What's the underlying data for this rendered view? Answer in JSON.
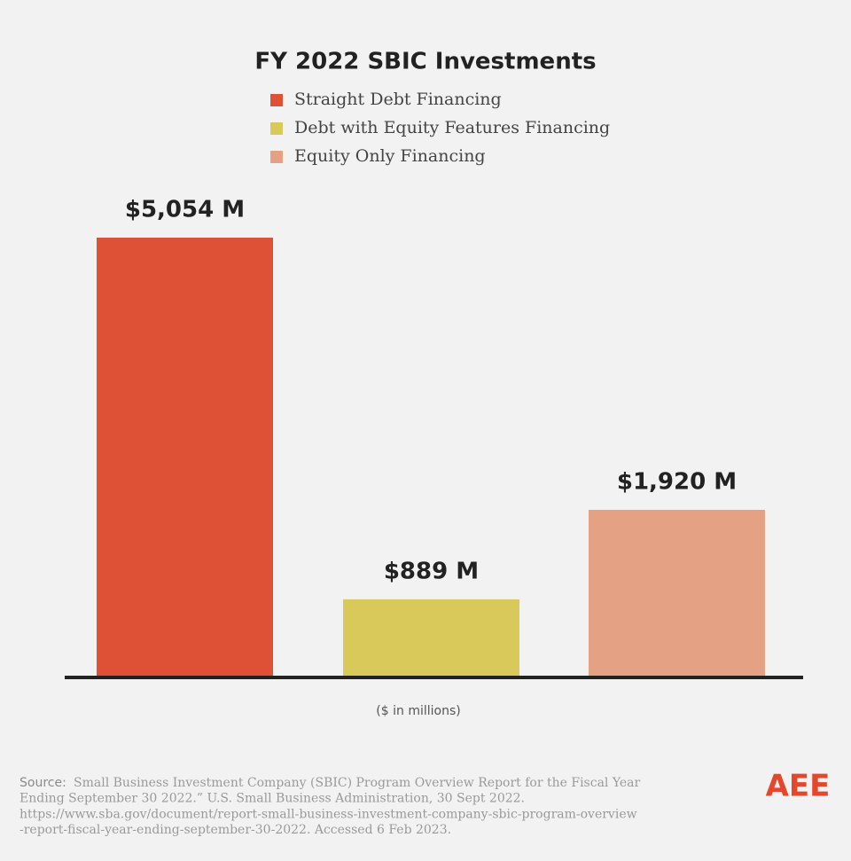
{
  "chart_data": {
    "type": "bar",
    "title": "FY 2022 SBIC Investments",
    "categories": [
      "Straight Debt Financing",
      "Debt with Equity Features Financing",
      "Equity Only Financing"
    ],
    "values": [
      5054,
      889,
      1920
    ],
    "value_labels": [
      "$5,054 M",
      "$889 M",
      "$1,920 M"
    ],
    "colors": [
      "#df5136",
      "#d9c85a",
      "#e4a184"
    ],
    "x_label": "($ in millions)"
  },
  "source": {
    "label": "Source:",
    "lines": [
      "Small Business Investment Company (SBIC) Program Overview Report for the Fiscal Year",
      "Ending September 30 2022.” U.S. Small Business Administration, 30 Sept 2022.",
      "https://www.sba.gov/document/report-small-business-investment-company-sbic-program-overview",
      "-report-fiscal-year-ending-september-30-2022. Accessed 6 Feb 2023."
    ]
  },
  "logo": "AEE"
}
